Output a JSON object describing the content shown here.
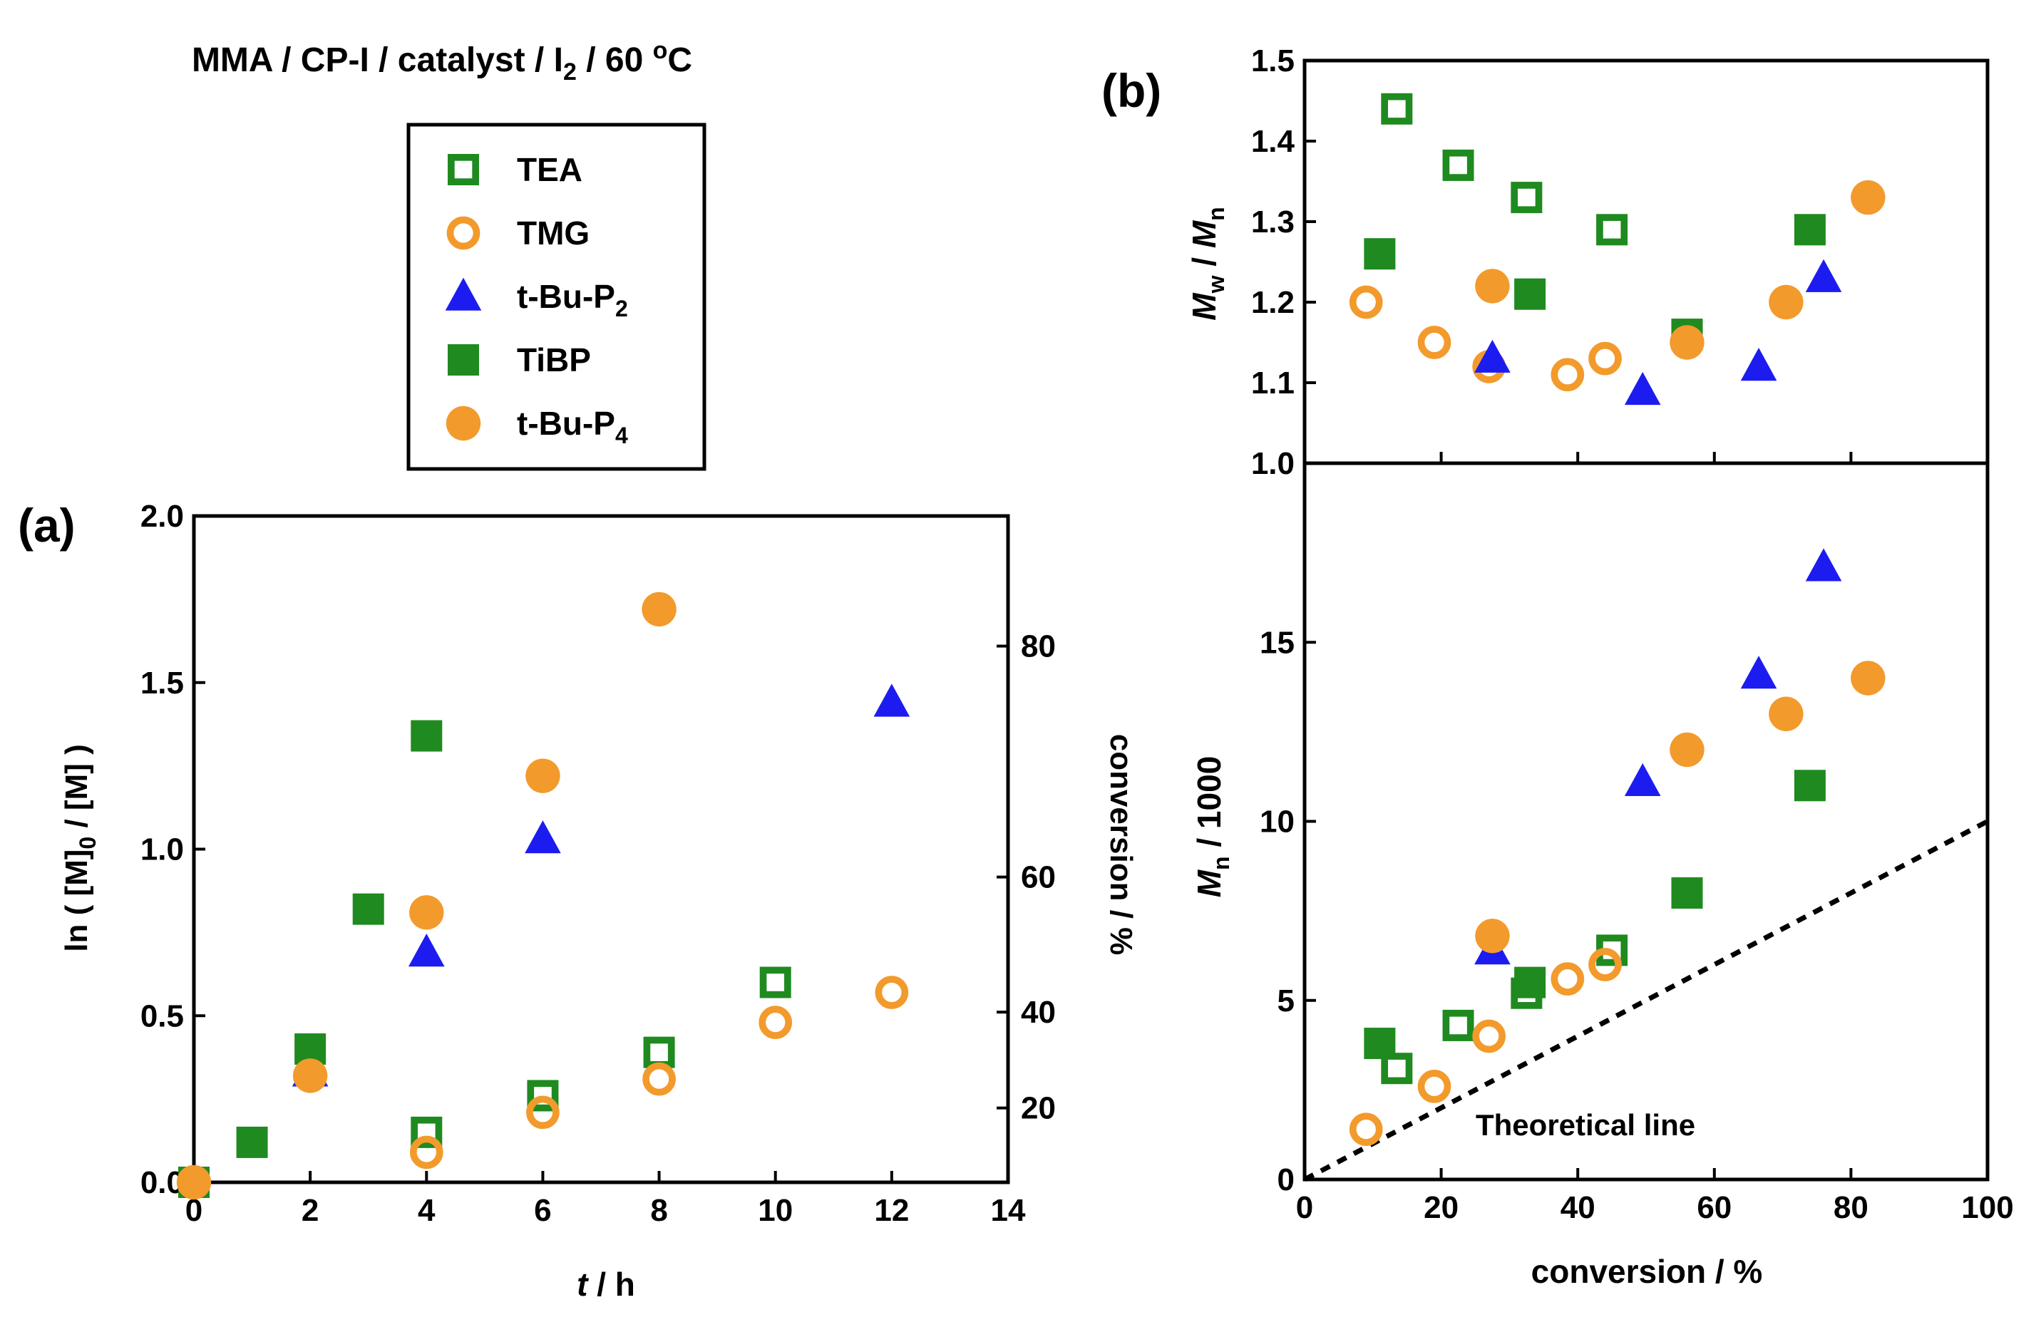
{
  "figure": {
    "title": "MMA / CP-I / catalyst / I₂ / 60 °C",
    "title_main": "MMA / CP-I / catalyst / I",
    "title_sub": "2",
    "title_tail": " / 60 ",
    "title_degree": "o",
    "title_unit": "C"
  },
  "legend": {
    "entries": [
      {
        "key": "TEA",
        "label": "TEA",
        "sub": "",
        "marker": "square-open",
        "color": "#1f8a1f"
      },
      {
        "key": "TMG",
        "label": "TMG",
        "sub": "",
        "marker": "circle-open",
        "color": "#f39a2c"
      },
      {
        "key": "tBuP2",
        "label": "t-Bu-P",
        "sub": "2",
        "marker": "triangle",
        "color": "#1c1cf0"
      },
      {
        "key": "TiBP",
        "label": "TiBP",
        "sub": "",
        "marker": "square-filled",
        "color": "#1f8a1f"
      },
      {
        "key": "tBuP4",
        "label": "t-Bu-P",
        "sub": "4",
        "marker": "circle-filled",
        "color": "#f39a2c"
      }
    ]
  },
  "panel_labels": {
    "a": "(a)",
    "b": "(b)"
  },
  "annotation": {
    "theoretical_line": "Theoretical line"
  },
  "chart_data": [
    {
      "id": "a",
      "type": "scatter",
      "title": "",
      "xlabel_italic": "t",
      "xlabel_rest": " / h",
      "ylabel": "ln ( [M]0 / [M] )",
      "ylabel_parts": {
        "a": "ln ( [M]",
        "sub": "0",
        "b": " / [M] )"
      },
      "y2label": "conversion / %",
      "xlim": [
        0,
        14
      ],
      "ylim": [
        0,
        2.0
      ],
      "xticks": [
        0,
        2,
        4,
        6,
        8,
        10,
        12,
        14
      ],
      "xtick_labels": [
        "0",
        "2",
        "4",
        "6",
        "8",
        "10",
        "12",
        "14"
      ],
      "yticks": [
        0.0,
        0.5,
        1.0,
        1.5,
        2.0
      ],
      "ytick_labels": [
        "0.0",
        "0.5",
        "1.0",
        "1.5",
        "2.0"
      ],
      "y2ticks": [
        20,
        40,
        60,
        80
      ],
      "y2tick_labels": [
        "20",
        "40",
        "60",
        "80"
      ],
      "series": [
        {
          "name": "TEA",
          "x": [
            0,
            4,
            6,
            8,
            10
          ],
          "y": [
            0.0,
            0.15,
            0.26,
            0.39,
            0.6
          ]
        },
        {
          "name": "TMG",
          "x": [
            0,
            4,
            6,
            8,
            10,
            12
          ],
          "y": [
            0.0,
            0.09,
            0.21,
            0.31,
            0.48,
            0.57
          ]
        },
        {
          "name": "tBuP2",
          "x": [
            2,
            4,
            6,
            12
          ],
          "y": [
            0.33,
            0.69,
            1.03,
            1.44
          ]
        },
        {
          "name": "TiBP",
          "x": [
            0,
            1,
            2,
            3,
            4
          ],
          "y": [
            0.0,
            0.12,
            0.4,
            0.82,
            1.34
          ]
        },
        {
          "name": "tBuP4",
          "x": [
            0,
            2,
            4,
            6,
            8
          ],
          "y": [
            0.0,
            0.32,
            0.81,
            1.22,
            1.72
          ]
        }
      ]
    },
    {
      "id": "b-top",
      "type": "scatter",
      "title": "",
      "xlabel": "",
      "ylabel_parts": {
        "a": "M",
        "sub1": "w",
        "b": " / ",
        "c": "M",
        "sub2": "n"
      },
      "xlim": [
        0,
        100
      ],
      "ylim": [
        1.0,
        1.5
      ],
      "yticks": [
        1.0,
        1.1,
        1.2,
        1.3,
        1.4,
        1.5
      ],
      "ytick_labels": [
        "1.0",
        "1.1",
        "1.2",
        "1.3",
        "1.4",
        "1.5"
      ],
      "series": [
        {
          "name": "TEA",
          "x": [
            13.5,
            22.5,
            32.5,
            45,
            56
          ],
          "y": [
            1.44,
            1.37,
            1.33,
            1.29,
            1.16
          ]
        },
        {
          "name": "TMG",
          "x": [
            9,
            19,
            27,
            38.5,
            44
          ],
          "y": [
            1.2,
            1.15,
            1.12,
            1.11,
            1.13
          ]
        },
        {
          "name": "tBuP2",
          "x": [
            27.5,
            49.5,
            66.5,
            76
          ],
          "y": [
            1.13,
            1.09,
            1.12,
            1.23
          ]
        },
        {
          "name": "TiBP",
          "x": [
            11,
            33,
            56,
            74
          ],
          "y": [
            1.26,
            1.21,
            1.16,
            1.29
          ]
        },
        {
          "name": "tBuP4",
          "x": [
            27.5,
            56,
            70.5,
            82.5
          ],
          "y": [
            1.22,
            1.15,
            1.2,
            1.33
          ]
        }
      ]
    },
    {
      "id": "b-bottom",
      "type": "scatter",
      "title": "",
      "xlabel": "conversion / %",
      "ylabel_parts": {
        "a": "M",
        "sub": "n",
        "b": " / 1000"
      },
      "xlim": [
        0,
        100
      ],
      "ylim": [
        0,
        20
      ],
      "xticks": [
        0,
        20,
        40,
        60,
        80,
        100
      ],
      "xtick_labels": [
        "0",
        "20",
        "40",
        "60",
        "80",
        "100"
      ],
      "yticks": [
        0,
        5,
        10,
        15
      ],
      "ytick_labels": [
        "0",
        "5",
        "10",
        "15"
      ],
      "theoretical_line": {
        "x": [
          0,
          100
        ],
        "y": [
          0,
          10
        ]
      },
      "series": [
        {
          "name": "TEA",
          "x": [
            13.5,
            22.5,
            32.5,
            45
          ],
          "y": [
            3.1,
            4.3,
            5.2,
            6.4
          ]
        },
        {
          "name": "TMG",
          "x": [
            9,
            19,
            27,
            38.5,
            44
          ],
          "y": [
            1.4,
            2.6,
            4.0,
            5.6,
            6.0
          ]
        },
        {
          "name": "tBuP2",
          "x": [
            27.5,
            49.5,
            66.5,
            76
          ],
          "y": [
            6.4,
            11.1,
            14.1,
            17.1
          ]
        },
        {
          "name": "TiBP",
          "x": [
            11,
            33,
            56,
            74
          ],
          "y": [
            3.8,
            5.5,
            8.0,
            11.0
          ]
        },
        {
          "name": "tBuP4",
          "x": [
            27.5,
            56,
            70.5,
            82.5
          ],
          "y": [
            6.8,
            12.0,
            13.0,
            14.0
          ]
        }
      ]
    }
  ]
}
